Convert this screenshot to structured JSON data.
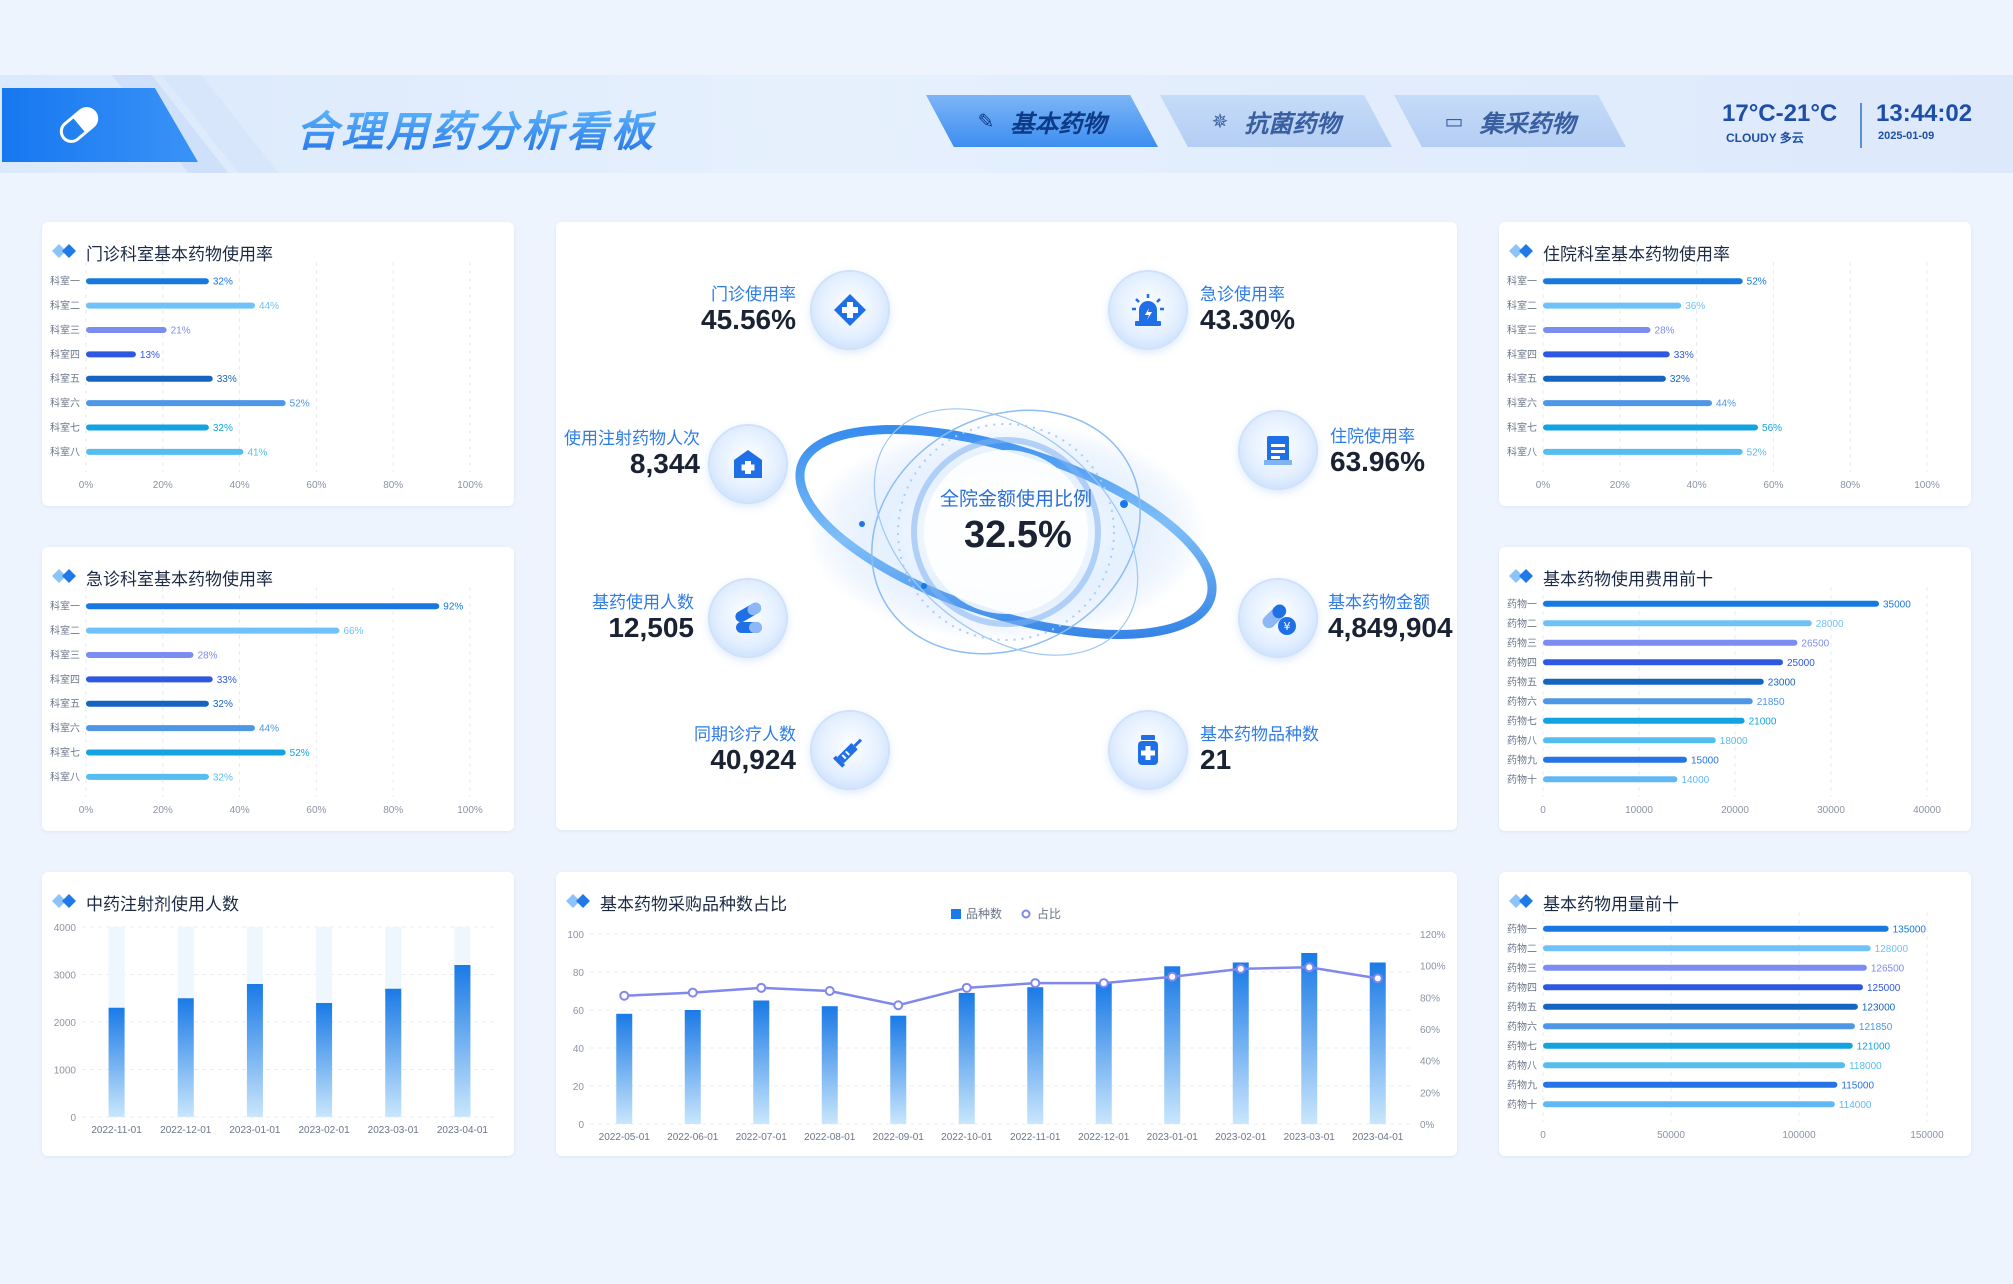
{
  "header": {
    "title": "合理用药分析看板",
    "tabs": [
      {
        "label": "基本药物",
        "icon": "pill-icon",
        "active": true
      },
      {
        "label": "抗菌药物",
        "icon": "virus-icon",
        "active": false
      },
      {
        "label": "集采药物",
        "icon": "inbox-icon",
        "active": false
      }
    ],
    "weather": {
      "temp": "17°C-21°C",
      "desc": "CLOUDY 多云"
    },
    "clock": {
      "time": "13:44:02",
      "date": "2025-01-09"
    }
  },
  "panels": {
    "outpatient": {
      "title": "门诊科室基本药物使用率"
    },
    "emergency": {
      "title": "急诊科室基本药物使用率"
    },
    "tcm": {
      "title": "中药注射剂使用人数"
    },
    "inpatient": {
      "title": "住院科室基本药物使用率"
    },
    "cost_top10": {
      "title": "基本药物使用费用前十"
    },
    "usage_top10": {
      "title": "基本药物用量前十"
    },
    "procurement": {
      "title": "基本药物采购品种数占比"
    }
  },
  "kpis": {
    "center": {
      "label": "全院金额使用比例",
      "value": "32.5%"
    },
    "outpatient_rate": {
      "label": "门诊使用率",
      "value": "45.56%",
      "icon": "medical-cross-icon"
    },
    "emergency_rate": {
      "label": "急诊使用率",
      "value": "43.30%",
      "icon": "siren-icon"
    },
    "injection_persons": {
      "label": "使用注射药物人次",
      "value": "8,344",
      "icon": "hospital-icon"
    },
    "inpatient_rate": {
      "label": "住院使用率",
      "value": "63.96%",
      "icon": "medical-record-icon"
    },
    "basic_drug_persons": {
      "label": "基药使用人数",
      "value": "12,505",
      "icon": "capsules-icon"
    },
    "basic_drug_amount": {
      "label": "基本药物金额",
      "value": "4,849,904",
      "icon": "pill-yuan-icon"
    },
    "same_period_visits": {
      "label": "同期诊疗人数",
      "value": "40,924",
      "icon": "syringe-icon"
    },
    "basic_drug_varieties": {
      "label": "基本药物品种数",
      "value": "21",
      "icon": "medicine-bottle-icon"
    }
  },
  "colors": {
    "accent": "#1677f0",
    "bar_palette": [
      "#1778e0",
      "#6ec2f7",
      "#7b8cf2",
      "#2f58e0",
      "#1565c0",
      "#4e96e6",
      "#13a3e0",
      "#56bdf0",
      "#2673e6",
      "#62b8f5"
    ],
    "line": "#8088ee"
  },
  "chart_data": [
    {
      "id": "outpatient",
      "type": "bar",
      "orientation": "horizontal",
      "categories": [
        "科室一",
        "科室二",
        "科室三",
        "科室四",
        "科室五",
        "科室六",
        "科室七",
        "科室八"
      ],
      "values": [
        32,
        44,
        21,
        13,
        33,
        52,
        32,
        41
      ],
      "labels": [
        "32%",
        "44%",
        "21%",
        "13%",
        "33%",
        "52%",
        "32%",
        "41%"
      ],
      "xlim": [
        0,
        100
      ],
      "ticks": [
        "0%",
        "20%",
        "40%",
        "60%",
        "80%",
        "100%"
      ]
    },
    {
      "id": "emergency",
      "type": "bar",
      "orientation": "horizontal",
      "categories": [
        "科室一",
        "科室二",
        "科室三",
        "科室四",
        "科室五",
        "科室六",
        "科室七",
        "科室八"
      ],
      "values": [
        92,
        66,
        28,
        33,
        32,
        44,
        52,
        32
      ],
      "labels": [
        "92%",
        "66%",
        "28%",
        "33%",
        "32%",
        "44%",
        "52%",
        "32%"
      ],
      "xlim": [
        0,
        100
      ],
      "ticks": [
        "0%",
        "20%",
        "40%",
        "60%",
        "80%",
        "100%"
      ]
    },
    {
      "id": "inpatient",
      "type": "bar",
      "orientation": "horizontal",
      "categories": [
        "科室一",
        "科室二",
        "科室三",
        "科室四",
        "科室五",
        "科室六",
        "科室七",
        "科室八"
      ],
      "values": [
        52,
        36,
        28,
        33,
        32,
        44,
        56,
        52
      ],
      "labels": [
        "52%",
        "36%",
        "28%",
        "33%",
        "32%",
        "44%",
        "56%",
        "52%"
      ],
      "xlim": [
        0,
        100
      ],
      "ticks": [
        "0%",
        "20%",
        "40%",
        "60%",
        "80%",
        "100%"
      ]
    },
    {
      "id": "cost_top10",
      "type": "bar",
      "orientation": "horizontal",
      "categories": [
        "药物一",
        "药物二",
        "药物三",
        "药物四",
        "药物五",
        "药物六",
        "药物七",
        "药物八",
        "药物九",
        "药物十"
      ],
      "values": [
        35000,
        28000,
        26500,
        25000,
        23000,
        21850,
        21000,
        18000,
        15000,
        14000
      ],
      "labels": [
        "35000",
        "28000",
        "26500",
        "25000",
        "23000",
        "21850",
        "21000",
        "18000",
        "15000",
        "14000"
      ],
      "xlim": [
        0,
        40000
      ],
      "ticks": [
        "0",
        "10000",
        "20000",
        "30000",
        "40000"
      ]
    },
    {
      "id": "usage_top10",
      "type": "bar",
      "orientation": "horizontal",
      "categories": [
        "药物一",
        "药物二",
        "药物三",
        "药物四",
        "药物五",
        "药物六",
        "药物七",
        "药物八",
        "药物九",
        "药物十"
      ],
      "values": [
        135000,
        128000,
        126500,
        125000,
        123000,
        121850,
        121000,
        118000,
        115000,
        114000
      ],
      "labels": [
        "135000",
        "128000",
        "126500",
        "125000",
        "123000",
        "121850",
        "121000",
        "118000",
        "115000",
        "114000"
      ],
      "xlim": [
        0,
        150000
      ],
      "ticks": [
        "0",
        "50000",
        "100000",
        "150000"
      ]
    },
    {
      "id": "tcm",
      "type": "bar",
      "orientation": "vertical",
      "categories": [
        "2022-11-01",
        "2022-12-01",
        "2023-01-01",
        "2023-02-01",
        "2023-03-01",
        "2023-04-01"
      ],
      "values": [
        2300,
        2500,
        2800,
        2400,
        2700,
        3200
      ],
      "ylim": [
        0,
        4000
      ],
      "yticks": [
        "0",
        "1000",
        "2000",
        "3000",
        "4000"
      ]
    },
    {
      "id": "procurement",
      "type": "bar+line",
      "categories": [
        "2022-05-01",
        "2022-06-01",
        "2022-07-01",
        "2022-08-01",
        "2022-09-01",
        "2022-10-01",
        "2022-11-01",
        "2022-12-01",
        "2023-01-01",
        "2023-02-01",
        "2023-03-01",
        "2023-04-01"
      ],
      "series": [
        {
          "name": "品种数",
          "type": "bar",
          "values": [
            58,
            60,
            65,
            62,
            57,
            69,
            72,
            74,
            83,
            85,
            90,
            85
          ]
        },
        {
          "name": "占比",
          "type": "line",
          "values": [
            81,
            83,
            86,
            84,
            75,
            86,
            89,
            89,
            93,
            98,
            99,
            92
          ]
        }
      ],
      "ylim_left": [
        0,
        100
      ],
      "ylim_right": [
        0,
        120
      ],
      "yticks_left": [
        "0",
        "20",
        "40",
        "60",
        "80",
        "100"
      ],
      "yticks_right": [
        "0%",
        "20%",
        "40%",
        "60%",
        "80%",
        "100%",
        "120%"
      ]
    }
  ]
}
